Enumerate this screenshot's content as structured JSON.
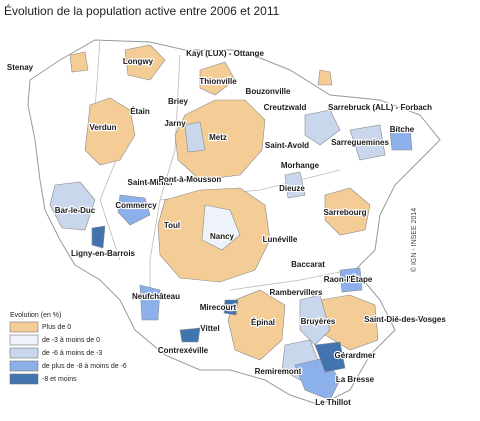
{
  "title": "Évolution de la population active entre 2006 et 2011",
  "copyright": "© IGN - INSEE 2014",
  "legend": {
    "title": "Evolution (en %)",
    "entries": [
      {
        "label": "Plus de 0",
        "color": "#f4cd96"
      },
      {
        "label": "de -3 à moins de 0",
        "color": "#eef2f9"
      },
      {
        "label": "de -6 à moins de -3",
        "color": "#c9d7ed"
      },
      {
        "label": "de plus de -8 à  moins de -6",
        "color": "#8cb1ea"
      },
      {
        "label": "-8 et moins",
        "color": "#4274b0"
      }
    ]
  },
  "places": [
    "Stenay",
    "Longwy",
    "Kayl (LUX) - Ottange",
    "Thionville",
    "Bouzonville",
    "Étain",
    "Briey",
    "Creutzwald",
    "Sarrebruck (ALL) - Forbach",
    "Verdun",
    "Jarny",
    "Metz",
    "Saint-Avold",
    "Sarreguemines",
    "Bitche",
    "Saint-Mihiel",
    "Pont-à-Mousson",
    "Morhange",
    "Dieuze",
    "Bar-le-Duc",
    "Commercy",
    "Sarrebourg",
    "Toul",
    "Nancy",
    "Lunéville",
    "Ligny-en-Barrois",
    "Baccarat",
    "Raon-l'Étape",
    "Neufchâteau",
    "Rambervillers",
    "Mirecourt",
    "Vittel",
    "Épinal",
    "Bruyères",
    "Saint-Dié-des-Vosges",
    "Contrexéville",
    "Gérardmer",
    "Remiremont",
    "La Bresse",
    "Le Thillot"
  ]
}
